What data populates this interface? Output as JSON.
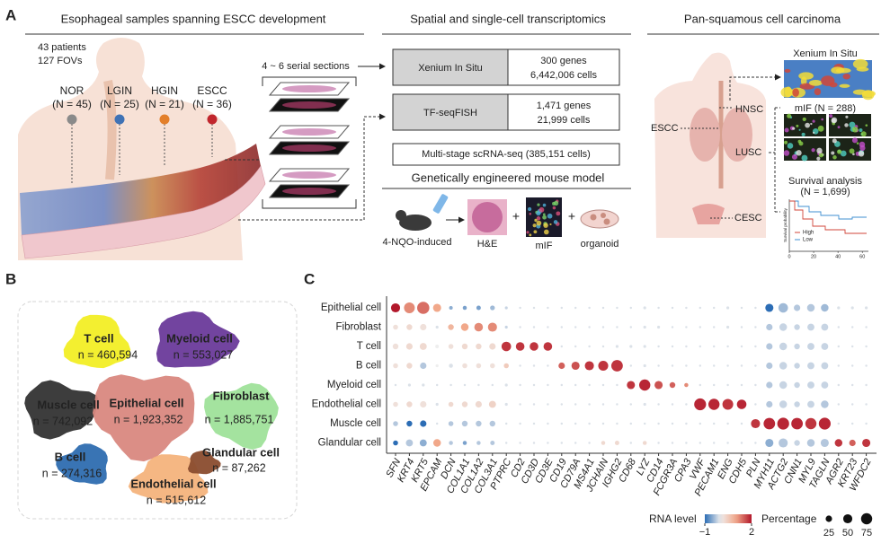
{
  "panel_a": {
    "label": "A",
    "headings": [
      "Esophageal samples spanning ESCC development",
      "Spatial and single-cell transcriptomics",
      "Pan-squamous cell carcinoma"
    ],
    "cohort": [
      "43 patients",
      "127 FOVs"
    ],
    "stages": [
      {
        "name": "NOR",
        "n": "(N = 45)",
        "color": "#8a8a8a"
      },
      {
        "name": "LGIN",
        "n": "(N = 25)",
        "color": "#3f72b5"
      },
      {
        "name": "HGIN",
        "n": "(N = 21)",
        "color": "#e37f2a"
      },
      {
        "name": "ESCC",
        "n": "(N = 36)",
        "color": "#c1262d"
      }
    ],
    "serial_sections": "4 ~ 6 serial sections",
    "platforms": [
      {
        "name": "Xenium In Situ",
        "details": [
          "300 genes",
          "6,442,006 cells"
        ]
      },
      {
        "name": "TF-seqFISH",
        "details": [
          "1,471 genes",
          "21,999 cells"
        ]
      }
    ],
    "scrna": "Multi-stage scRNA-seq (385,151 cells)",
    "mouse": {
      "title": "Genetically engineered mouse model",
      "steps": [
        "4-NQO-induced",
        "H&E",
        "mIF",
        "organoid"
      ]
    },
    "pan": {
      "sites": [
        "HNSC",
        "ESCC",
        "LUSC",
        "CESC"
      ],
      "validation": [
        "Xenium In Situ",
        "mIF (N = 288)"
      ],
      "survival": {
        "title": "Survival analysis",
        "n": "(N = 1,699)",
        "ylabel": "Survival probability",
        "legend": [
          "High",
          "Low"
        ],
        "xlim": [
          0,
          65
        ],
        "xticks": [
          0,
          20,
          40,
          60
        ]
      }
    }
  },
  "panel_b": {
    "label": "B",
    "clusters": [
      {
        "name": "T cell",
        "n": "n = 460,594",
        "color": "#f2ee25"
      },
      {
        "name": "Myeloid cell",
        "n": "n = 553,027",
        "color": "#6a3a9a"
      },
      {
        "name": "Muscle cell",
        "n": "n = 742,092",
        "color": "#333333"
      },
      {
        "name": "Epithelial cell",
        "n": "n = 1,923,352",
        "color": "#d98880"
      },
      {
        "name": "Fibroblast",
        "n": "n = 1,885,751",
        "color": "#9fe29a"
      },
      {
        "name": "B cell",
        "n": "n = 274,316",
        "color": "#2e6db0"
      },
      {
        "name": "Endothelial cell",
        "n": "n = 515,612",
        "color": "#f4b37c"
      },
      {
        "name": "Glandular cell",
        "n": "n = 87,262",
        "color": "#8a4c2e"
      }
    ]
  },
  "panel_c": {
    "label": "C",
    "rows": [
      "Epithelial cell",
      "Fibroblast",
      "T cell",
      "B cell",
      "Myeloid cell",
      "Endothelial cell",
      "Muscle cell",
      "Glandular cell"
    ],
    "genes": [
      "SFN",
      "KRT4",
      "KRT5",
      "EPCAM",
      "DCN",
      "COL1A1",
      "COL1A2",
      "COL3A1",
      "PTPRC",
      "CD2",
      "CD3D",
      "CD3E",
      "CD19",
      "CD79A",
      "MS4A1",
      "JCHAIN",
      "IGHG2",
      "CD68",
      "LYZ",
      "CD14",
      "FCGR3A",
      "CPA3",
      "VWF",
      "PECAM1",
      "ENG",
      "CDH5",
      "PLN",
      "MYH11",
      "ACTG2",
      "CNN1",
      "MYL9",
      "TAGLN",
      "AGR2",
      "KRT23",
      "WFDC2"
    ],
    "level": [
      [
        2,
        1.2,
        1.4,
        1,
        -0.5,
        -0.6,
        -0.6,
        -0.4,
        -0.2,
        -0.1,
        -0.1,
        -0.1,
        -0.1,
        -0.1,
        -0.1,
        -0.1,
        -0.1,
        -0.1,
        -0.1,
        -0.1,
        -0.1,
        -0.1,
        -0.1,
        -0.1,
        -0.1,
        -0.1,
        -0.1,
        -1,
        -0.4,
        -0.3,
        -0.3,
        -0.4,
        -0.1,
        -0.1,
        -0.1
      ],
      [
        0.2,
        0.3,
        0.2,
        -0.1,
        0.8,
        1,
        1.2,
        1.2,
        -0.2,
        -0.1,
        -0.1,
        -0.1,
        -0.1,
        -0.1,
        -0.1,
        -0.1,
        -0.1,
        -0.1,
        -0.1,
        -0.1,
        -0.1,
        -0.1,
        -0.1,
        -0.1,
        -0.1,
        -0.1,
        -0.1,
        -0.3,
        -0.2,
        -0.2,
        -0.2,
        -0.2,
        -0.1,
        -0.1,
        -0.1
      ],
      [
        0.2,
        0.3,
        0.3,
        0,
        0.2,
        0.3,
        0.3,
        0.3,
        1.8,
        1.8,
        1.8,
        1.8,
        -0.1,
        -0.1,
        -0.1,
        -0.1,
        -0.1,
        -0.1,
        -0.1,
        -0.1,
        -0.1,
        -0.1,
        -0.1,
        -0.1,
        -0.1,
        -0.1,
        -0.1,
        -0.3,
        -0.2,
        -0.2,
        -0.2,
        -0.2,
        -0.1,
        -0.1,
        -0.1
      ],
      [
        0.2,
        0.3,
        -0.3,
        0,
        -0.1,
        0.2,
        0.2,
        0.2,
        0.5,
        -0.1,
        -0.1,
        -0.1,
        1.5,
        1.6,
        1.8,
        1.8,
        1.8,
        -0.1,
        -0.1,
        -0.1,
        -0.1,
        -0.1,
        -0.1,
        -0.1,
        -0.1,
        -0.1,
        -0.1,
        -0.3,
        -0.2,
        -0.2,
        -0.2,
        -0.2,
        -0.1,
        -0.1,
        -0.1
      ],
      [
        -0.1,
        -0.1,
        -0.1,
        -0.1,
        -0.1,
        -0.1,
        -0.1,
        -0.1,
        -0.1,
        -0.1,
        -0.1,
        -0.1,
        -0.1,
        -0.1,
        -0.1,
        -0.1,
        -0.1,
        1.8,
        1.9,
        1.6,
        1.5,
        1.2,
        -0.1,
        -0.1,
        -0.1,
        -0.1,
        -0.1,
        -0.3,
        -0.2,
        -0.2,
        -0.2,
        -0.2,
        -0.1,
        -0.1,
        -0.1
      ],
      [
        0.2,
        0.3,
        0.2,
        -0.1,
        0.3,
        0.3,
        0.3,
        0.4,
        -0.1,
        -0.1,
        -0.1,
        -0.1,
        -0.1,
        -0.1,
        -0.1,
        -0.1,
        -0.1,
        -0.1,
        -0.1,
        -0.1,
        -0.1,
        -0.1,
        1.9,
        1.9,
        1.8,
        1.9,
        -0.1,
        -0.3,
        -0.2,
        -0.2,
        -0.2,
        -0.3,
        -0.1,
        -0.1,
        -0.1
      ],
      [
        -0.3,
        -1,
        -1,
        -0.1,
        -0.3,
        -0.3,
        -0.3,
        -0.3,
        -0.1,
        -0.1,
        -0.1,
        -0.1,
        -0.1,
        -0.1,
        -0.1,
        -0.1,
        -0.1,
        -0.1,
        -0.1,
        -0.1,
        -0.1,
        -0.1,
        -0.1,
        -0.1,
        -0.1,
        -0.1,
        1.8,
        1.9,
        1.9,
        1.9,
        1.8,
        1.9,
        -0.1,
        -0.1,
        -0.1
      ],
      [
        -1,
        -0.3,
        -0.5,
        1,
        -0.3,
        -0.6,
        -0.3,
        -0.3,
        -0.1,
        -0.1,
        -0.1,
        -0.1,
        -0.1,
        -0.1,
        -0.1,
        0.3,
        0.3,
        -0.1,
        0.3,
        -0.1,
        -0.1,
        -0.1,
        -0.1,
        -0.1,
        -0.1,
        -0.1,
        -0.1,
        -0.5,
        -0.3,
        -0.2,
        -0.3,
        -0.3,
        1.8,
        1.5,
        1.8
      ]
    ],
    "percentage": [
      [
        50,
        70,
        90,
        40,
        8,
        10,
        12,
        14,
        5,
        3,
        3,
        3,
        3,
        3,
        3,
        3,
        3,
        3,
        5,
        3,
        3,
        3,
        3,
        3,
        5,
        3,
        3,
        40,
        55,
        25,
        35,
        35,
        5,
        5,
        5
      ],
      [
        15,
        20,
        25,
        5,
        20,
        35,
        45,
        50,
        5,
        3,
        3,
        3,
        3,
        3,
        3,
        3,
        3,
        3,
        5,
        5,
        3,
        3,
        3,
        3,
        5,
        3,
        3,
        25,
        35,
        20,
        30,
        30,
        3,
        3,
        3
      ],
      [
        20,
        25,
        30,
        8,
        15,
        20,
        20,
        25,
        55,
        45,
        45,
        45,
        3,
        3,
        3,
        3,
        5,
        5,
        5,
        3,
        3,
        3,
        3,
        3,
        3,
        3,
        3,
        25,
        35,
        20,
        30,
        30,
        3,
        3,
        3
      ],
      [
        15,
        20,
        25,
        5,
        10,
        15,
        15,
        15,
        15,
        3,
        3,
        3,
        25,
        40,
        50,
        60,
        80,
        3,
        5,
        3,
        3,
        3,
        3,
        3,
        3,
        3,
        3,
        25,
        35,
        20,
        30,
        30,
        3,
        3,
        3
      ],
      [
        3,
        5,
        5,
        3,
        3,
        3,
        3,
        3,
        5,
        3,
        3,
        3,
        3,
        3,
        3,
        3,
        3,
        40,
        75,
        40,
        20,
        10,
        3,
        3,
        3,
        3,
        3,
        25,
        35,
        20,
        30,
        30,
        3,
        3,
        3
      ],
      [
        15,
        20,
        25,
        5,
        15,
        20,
        25,
        30,
        5,
        3,
        3,
        3,
        3,
        3,
        3,
        3,
        3,
        3,
        5,
        3,
        3,
        3,
        85,
        75,
        70,
        55,
        3,
        25,
        35,
        20,
        30,
        35,
        3,
        3,
        3
      ],
      [
        15,
        20,
        25,
        3,
        15,
        20,
        20,
        20,
        3,
        3,
        3,
        3,
        3,
        3,
        3,
        3,
        3,
        3,
        3,
        3,
        3,
        3,
        3,
        3,
        3,
        3,
        50,
        80,
        85,
        80,
        75,
        85,
        3,
        3,
        3
      ],
      [
        15,
        30,
        30,
        35,
        10,
        10,
        10,
        12,
        3,
        3,
        3,
        3,
        3,
        3,
        3,
        10,
        12,
        3,
        10,
        3,
        3,
        3,
        3,
        3,
        3,
        3,
        3,
        40,
        50,
        20,
        35,
        40,
        35,
        25,
        40
      ]
    ],
    "level_title": "RNA level",
    "level_lim": [
      -1,
      2
    ],
    "level_ticks": [
      {
        "value": -1,
        "label": "−1"
      },
      2
    ],
    "percentage_title": "Percentage",
    "percentage_ticks": [
      25,
      50,
      75
    ]
  }
}
